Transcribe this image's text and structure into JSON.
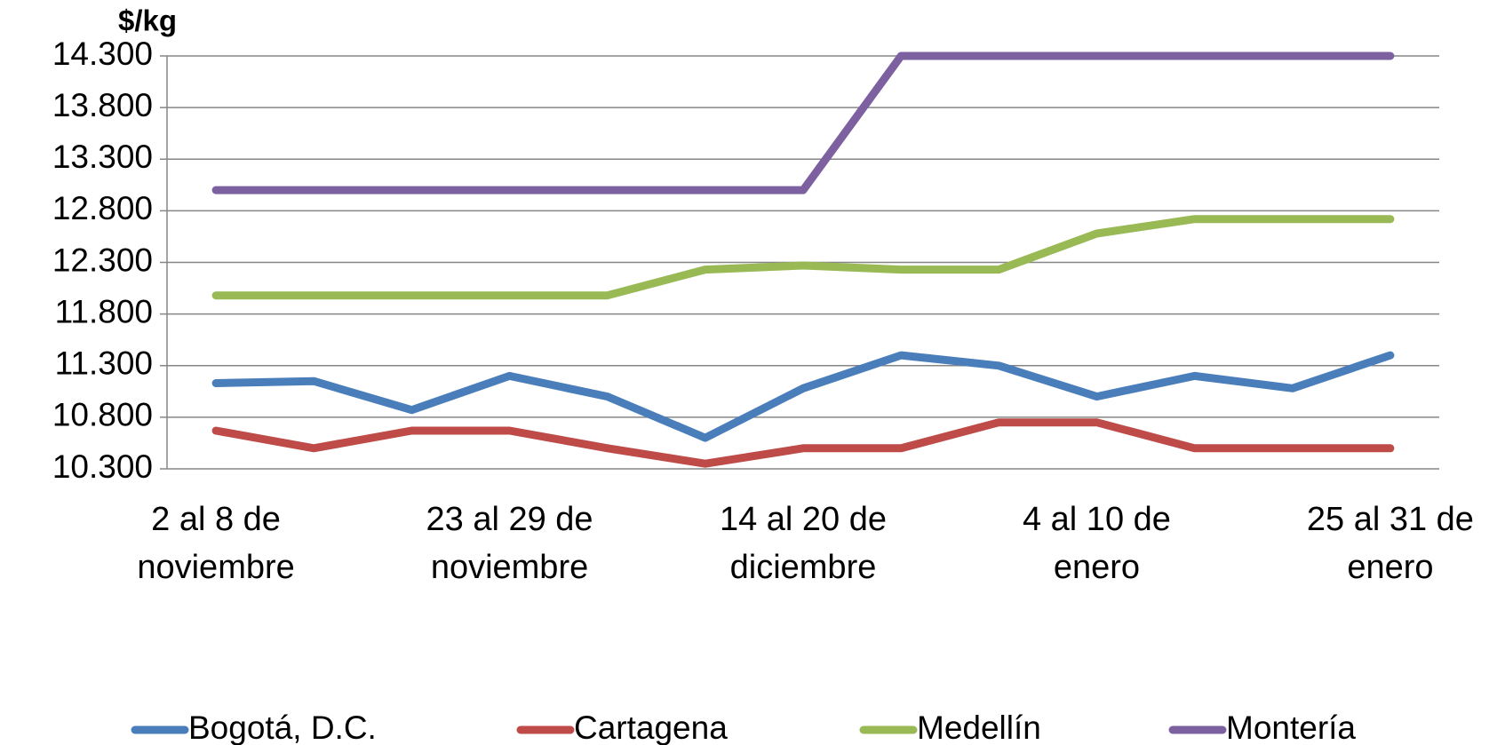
{
  "chart_data": {
    "type": "line",
    "y_axis_label": "$/kg",
    "categories": [
      "2 al 8 de noviembre",
      null,
      null,
      "23 al 29 de noviembre",
      null,
      null,
      "14 al 20 de diciembre",
      null,
      null,
      "4 al 10 de enero",
      null,
      null,
      "25 al 31 de enero"
    ],
    "series": [
      {
        "name": "Bogotá, D.C.",
        "color": "#4a7ebb",
        "values": [
          11130,
          11150,
          10870,
          11200,
          11000,
          10600,
          11080,
          11400,
          11300,
          11000,
          11200,
          11080,
          11400
        ]
      },
      {
        "name": "Cartagena",
        "color": "#be4b48",
        "values": [
          10670,
          10500,
          10670,
          10670,
          10500,
          10350,
          10500,
          10500,
          10750,
          10750,
          10500,
          10500,
          10500
        ]
      },
      {
        "name": "Medellín",
        "color": "#98b954",
        "values": [
          11980,
          11980,
          11980,
          11980,
          11980,
          12230,
          12270,
          12230,
          12230,
          12580,
          12720,
          12720,
          12720
        ]
      },
      {
        "name": "Montería",
        "color": "#7d60a0",
        "values": [
          13000,
          13000,
          13000,
          13000,
          13000,
          13000,
          13000,
          14300,
          14300,
          14300,
          14300,
          14300,
          14300
        ]
      }
    ],
    "ylim": [
      10300,
      14300
    ],
    "yticks": [
      {
        "value": 10300,
        "label": "10.300"
      },
      {
        "value": 10800,
        "label": "10.800"
      },
      {
        "value": 11300,
        "label": "11.300"
      },
      {
        "value": 11800,
        "label": "11.800"
      },
      {
        "value": 12300,
        "label": "12.300"
      },
      {
        "value": 12800,
        "label": "12.800"
      },
      {
        "value": 13300,
        "label": "13.300"
      },
      {
        "value": 13800,
        "label": "13.800"
      },
      {
        "value": 14300,
        "label": "14.300"
      }
    ],
    "grid": true,
    "legend": "bottom"
  }
}
